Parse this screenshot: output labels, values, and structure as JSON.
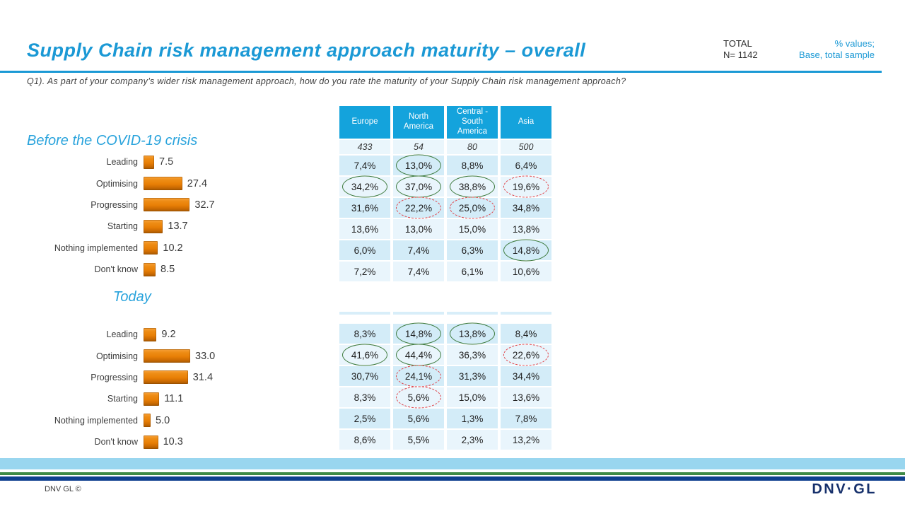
{
  "header": {
    "title": "Supply Chain risk management approach maturity – overall",
    "total_label": "TOTAL",
    "total_n": "N= 1142",
    "note_line1": "% values;",
    "note_line2": "Base, total sample",
    "question": "Q1). As part of your company’s wider risk management approach, how do you rate the maturity of your Supply Chain risk management approach?"
  },
  "colors": {
    "accent_cyan": "#1B99D5",
    "table_header_blue": "#14A3DC",
    "row_dark": "#D3ECF8",
    "row_light": "#E9F5FC",
    "bar_orange": "#EC8407",
    "highlight_green": "#3E7B3E",
    "highlight_red_dashed": "#E04046",
    "stripe_lightblue": "#99D6EF",
    "stripe_green": "#3F8A46",
    "stripe_navy": "#10408F"
  },
  "chart_data": [
    {
      "type": "bar",
      "title": "Before the COVID-19 crisis",
      "orientation": "horizontal",
      "categories": [
        "Leading",
        "Optimising",
        "Progressing",
        "Starting",
        "Nothing implemented",
        "Don't know"
      ],
      "values": [
        7.5,
        27.4,
        32.7,
        13.7,
        10.2,
        8.5
      ],
      "labels": [
        "7.5",
        "27.4",
        "32.7",
        "13.7",
        "10.2",
        "8.5"
      ],
      "xlim": [
        0,
        50
      ],
      "bar_color": "#EC8407",
      "grid": false,
      "legend": "none"
    },
    {
      "type": "bar",
      "title": "Today",
      "orientation": "horizontal",
      "categories": [
        "Leading",
        "Optimising",
        "Progressing",
        "Starting",
        "Nothing implemented",
        "Don't know"
      ],
      "values": [
        9.2,
        33.0,
        31.4,
        11.1,
        5.0,
        10.3
      ],
      "labels": [
        "9.2",
        "33.0",
        "31.4",
        "11.1",
        "5.0",
        "10.3"
      ],
      "xlim": [
        0,
        50
      ],
      "bar_color": "#EC8407",
      "grid": false,
      "legend": "none"
    },
    {
      "type": "table",
      "title": "Before the COVID-19 crisis — by region",
      "show_header": true,
      "columns": [
        "Europe",
        "North America",
        "Central - South America",
        "Asia"
      ],
      "base_row": [
        "433",
        "54",
        "80",
        "500"
      ],
      "row_categories": [
        "Leading",
        "Optimising",
        "Progressing",
        "Starting",
        "Nothing implemented",
        "Don't know"
      ],
      "rows": [
        [
          "7,4%",
          "13,0%",
          "8,8%",
          "6,4%"
        ],
        [
          "34,2%",
          "37,0%",
          "38,8%",
          "19,6%"
        ],
        [
          "31,6%",
          "22,2%",
          "25,0%",
          "34,8%"
        ],
        [
          "13,6%",
          "13,0%",
          "15,0%",
          "13,8%"
        ],
        [
          "6,0%",
          "7,4%",
          "6,3%",
          "14,8%"
        ],
        [
          "7,2%",
          "7,4%",
          "6,1%",
          "10,6%"
        ]
      ],
      "highlights_green": [
        [
          0,
          1
        ],
        [
          1,
          0
        ],
        [
          1,
          1
        ],
        [
          1,
          2
        ],
        [
          4,
          3
        ]
      ],
      "highlights_red_dashed": [
        [
          1,
          3
        ],
        [
          2,
          1
        ],
        [
          2,
          2
        ]
      ]
    },
    {
      "type": "table",
      "title": "Today — by region",
      "show_header": false,
      "columns": [
        "Europe",
        "North America",
        "Central - South America",
        "Asia"
      ],
      "row_categories": [
        "Leading",
        "Optimising",
        "Progressing",
        "Starting",
        "Nothing implemented",
        "Don't know"
      ],
      "rows": [
        [
          "8,3%",
          "14,8%",
          "13,8%",
          "8,4%"
        ],
        [
          "41,6%",
          "44,4%",
          "36,3%",
          "22,6%"
        ],
        [
          "30,7%",
          "24,1%",
          "31,3%",
          "34,4%"
        ],
        [
          "8,3%",
          "5,6%",
          "15,0%",
          "13,6%"
        ],
        [
          "2,5%",
          "5,6%",
          "1,3%",
          "7,8%"
        ],
        [
          "8,6%",
          "5,5%",
          "2,3%",
          "13,2%"
        ]
      ],
      "highlights_green": [
        [
          0,
          1
        ],
        [
          0,
          2
        ],
        [
          1,
          0
        ],
        [
          1,
          1
        ]
      ],
      "highlights_red_dashed": [
        [
          1,
          3
        ],
        [
          2,
          1
        ],
        [
          3,
          1
        ]
      ]
    }
  ],
  "footer": {
    "copyright": "DNV GL ©",
    "logo": "DNV·GL"
  }
}
